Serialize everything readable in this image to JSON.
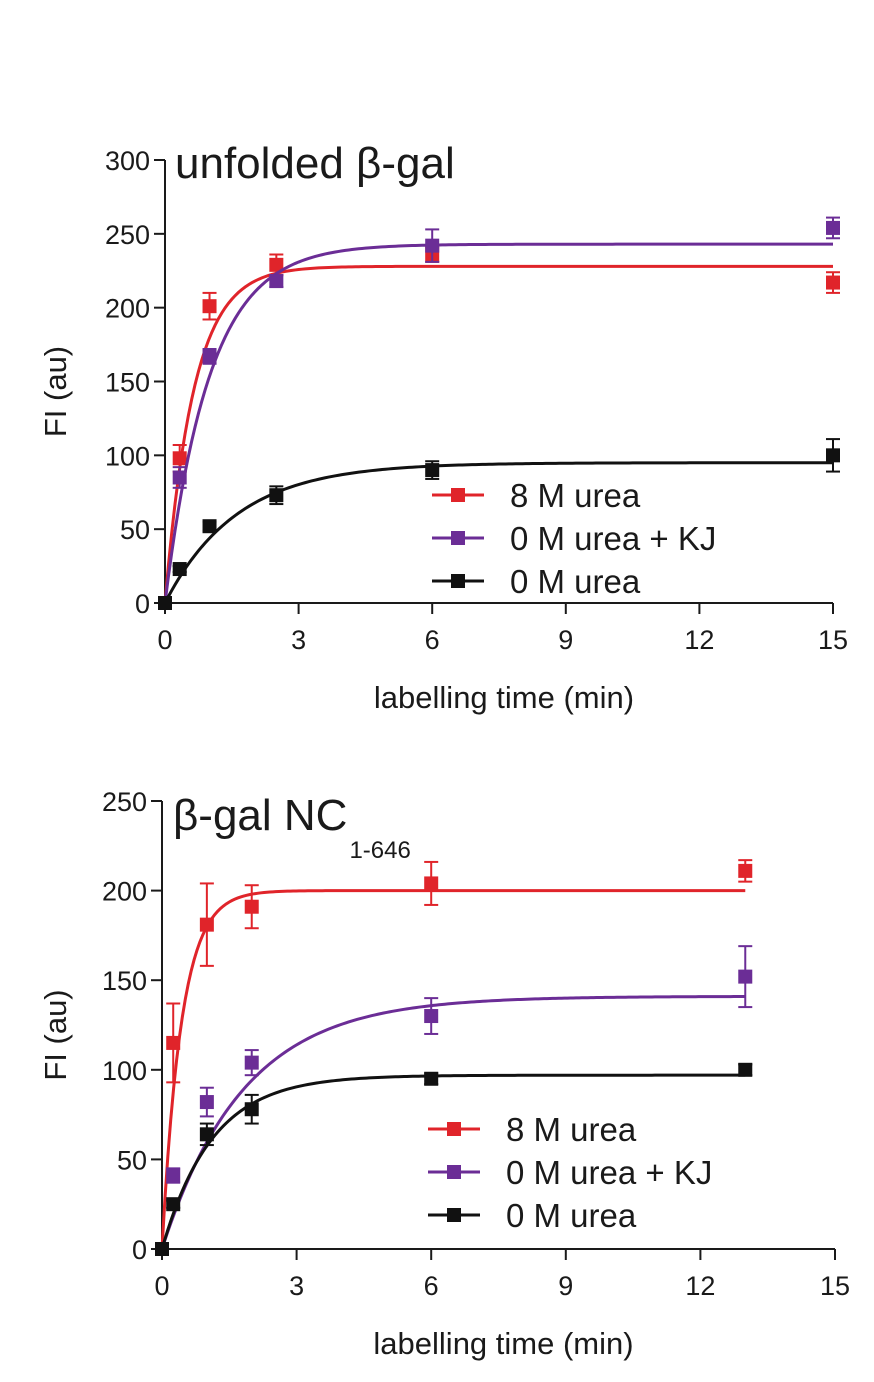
{
  "chart_data": [
    {
      "type": "scatter",
      "title": "unfolded β-gal",
      "title_sub": "",
      "xlabel": "labelling time (min)",
      "ylabel": "FI (au)",
      "xlim": [
        0,
        15
      ],
      "ylim": [
        0,
        300
      ],
      "xticks": [
        "0",
        "3",
        "6",
        "9",
        "12",
        "15"
      ],
      "yticks": [
        "0",
        "50",
        "100",
        "150",
        "200",
        "250",
        "300"
      ],
      "legend_position": "lower-right",
      "series": [
        {
          "name": "8 M urea",
          "color": "#e0242a",
          "x": [
            0,
            0.33,
            1,
            2.5,
            6,
            15
          ],
          "y": [
            0,
            98,
            201,
            229,
            236,
            217
          ],
          "err": [
            0,
            9,
            9,
            7,
            5,
            7
          ],
          "fit": {
            "plateau": 228,
            "k": 1.55
          }
        },
        {
          "name": "0 M urea + KJ",
          "color": "#6b2d96",
          "x": [
            0,
            0.33,
            1,
            2.5,
            6,
            15
          ],
          "y": [
            0,
            85,
            167,
            218,
            242,
            254
          ],
          "err": [
            0,
            7,
            5,
            4,
            11,
            7
          ],
          "fit": {
            "plateau": 243,
            "k": 1.0
          }
        },
        {
          "name": "0 M urea",
          "color": "#111111",
          "x": [
            0,
            0.33,
            1,
            2.5,
            6,
            15
          ],
          "y": [
            0,
            23,
            52,
            73,
            90,
            100
          ],
          "err": [
            0,
            2,
            3,
            6,
            6,
            11
          ],
          "fit": {
            "plateau": 95,
            "k": 0.62
          }
        }
      ]
    },
    {
      "type": "scatter",
      "title": "β-gal NC",
      "title_sub": "1-646",
      "xlabel": "labelling time (min)",
      "ylabel": "FI (au)",
      "xlim": [
        0,
        15
      ],
      "ylim": [
        0,
        250
      ],
      "xticks": [
        "0",
        "3",
        "6",
        "9",
        "12",
        "15"
      ],
      "yticks": [
        "0",
        "50",
        "100",
        "150",
        "200",
        "250"
      ],
      "legend_position": "lower-right",
      "series": [
        {
          "name": "8 M urea",
          "color": "#e0242a",
          "x": [
            0,
            0.25,
            1,
            2,
            6,
            13
          ],
          "y": [
            0,
            115,
            181,
            191,
            204,
            211
          ],
          "err": [
            0,
            22,
            23,
            12,
            12,
            6
          ],
          "fit": {
            "plateau": 200,
            "k": 2.3
          }
        },
        {
          "name": "0 M urea + KJ",
          "color": "#6b2d96",
          "x": [
            0,
            0.25,
            1,
            2,
            6,
            13
          ],
          "y": [
            0,
            41,
            82,
            104,
            130,
            152
          ],
          "err": [
            0,
            4,
            8,
            7,
            10,
            17
          ],
          "fit": {
            "plateau": 141,
            "k": 0.55
          }
        },
        {
          "name": "0 M urea",
          "color": "#111111",
          "x": [
            0,
            0.25,
            1,
            2,
            6,
            13
          ],
          "y": [
            0,
            25,
            64,
            78,
            95,
            100
          ],
          "err": [
            0,
            2,
            6,
            8,
            3,
            3
          ],
          "fit": {
            "plateau": 97,
            "k": 0.9
          }
        }
      ]
    }
  ]
}
